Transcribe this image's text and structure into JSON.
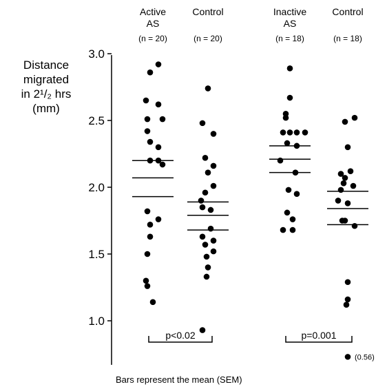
{
  "chart_data": {
    "type": "scatter",
    "ylabel": [
      "Distance",
      "migrated",
      "in 2¹/₂ hrs",
      "(mm)"
    ],
    "ylim": [
      0.7,
      3.05
    ],
    "yticks": [
      "1.0",
      "1.5",
      "2.0",
      "2.5",
      "3.0"
    ],
    "footnote": "Bars represent the mean (SEM)",
    "groups": [
      {
        "label": [
          "Active",
          "AS"
        ],
        "n": "(n = 20)",
        "mean": 2.07,
        "sem_low": 1.93,
        "sem_high": 2.2,
        "values": [
          2.92,
          2.86,
          2.65,
          2.62,
          2.51,
          2.51,
          2.42,
          2.34,
          2.3,
          2.2,
          2.2,
          2.17,
          1.82,
          1.76,
          1.72,
          1.63,
          1.5,
          1.3,
          1.26,
          1.14
        ]
      },
      {
        "label": [
          "Control"
        ],
        "n": "(n = 20)",
        "mean": 1.79,
        "sem_low": 1.68,
        "sem_high": 1.89,
        "values": [
          2.74,
          2.48,
          2.4,
          2.22,
          2.16,
          2.11,
          2.01,
          1.96,
          1.9,
          1.85,
          1.83,
          1.69,
          1.63,
          1.6,
          1.57,
          1.52,
          1.48,
          1.4,
          1.33,
          0.93
        ]
      },
      {
        "label": [
          "Inactive",
          "AS"
        ],
        "n": "(n = 18)",
        "mean": 2.21,
        "sem_low": 2.11,
        "sem_high": 2.31,
        "values": [
          2.89,
          2.67,
          2.55,
          2.52,
          2.41,
          2.41,
          2.41,
          2.41,
          2.33,
          2.31,
          2.2,
          2.11,
          1.98,
          1.95,
          1.81,
          1.76,
          1.68,
          1.68
        ]
      },
      {
        "label": [
          "Control"
        ],
        "n": "(n = 18)",
        "mean": 1.84,
        "sem_low": 1.72,
        "sem_high": 1.97,
        "values": [
          2.52,
          2.49,
          2.3,
          2.12,
          2.1,
          2.07,
          2.03,
          2.01,
          1.98,
          1.9,
          1.88,
          1.75,
          1.75,
          1.71,
          1.29,
          1.16,
          1.12,
          0.73
        ],
        "outlier_label": "(0.56)"
      }
    ],
    "comparisons": [
      {
        "groups": [
          0,
          1
        ],
        "label": "p<0.02"
      },
      {
        "groups": [
          2,
          3
        ],
        "label": "p=0.001"
      }
    ]
  }
}
